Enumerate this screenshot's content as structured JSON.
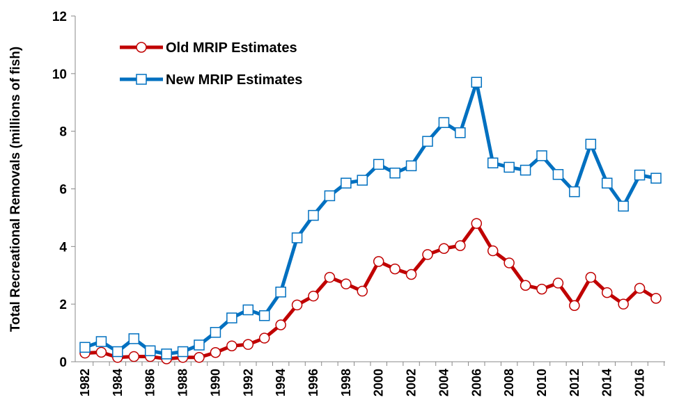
{
  "chart_data": {
    "type": "line",
    "y_label": "Total Recreational Removals (millions of fish)",
    "categories": [
      "1982",
      null,
      "1984",
      null,
      "1986",
      null,
      "1988",
      null,
      "1990",
      null,
      "1992",
      null,
      "1994",
      null,
      "1996",
      null,
      "1998",
      null,
      "2000",
      null,
      "2002",
      null,
      "2004",
      null,
      "2006",
      null,
      "2008",
      null,
      "2010",
      null,
      "2012",
      null,
      "2014",
      null,
      "2016",
      null
    ],
    "series": [
      {
        "name": "Old MRIP Estimates",
        "color": "#c00000",
        "marker": "circle",
        "values": [
          0.3,
          0.33,
          0.15,
          0.18,
          0.18,
          0.1,
          0.15,
          0.15,
          0.32,
          0.55,
          0.6,
          0.82,
          1.28,
          1.97,
          2.28,
          2.93,
          2.7,
          2.45,
          3.48,
          3.22,
          3.03,
          3.72,
          3.93,
          4.03,
          4.8,
          3.85,
          3.43,
          2.65,
          2.52,
          2.73,
          1.95,
          2.93,
          2.4,
          2.0,
          2.55,
          2.2
        ]
      },
      {
        "name": "New MRIP Estimates",
        "color": "#0070c0",
        "marker": "square",
        "values": [
          0.5,
          0.7,
          0.35,
          0.8,
          0.38,
          0.27,
          0.35,
          0.58,
          1.02,
          1.52,
          1.8,
          1.6,
          2.42,
          4.3,
          5.08,
          5.76,
          6.2,
          6.3,
          6.85,
          6.55,
          6.8,
          7.65,
          8.3,
          7.95,
          9.7,
          6.9,
          6.75,
          6.65,
          7.15,
          6.5,
          5.9,
          7.55,
          6.2,
          5.4,
          6.48,
          6.37
        ]
      }
    ],
    "ylim": [
      0,
      12
    ],
    "yticks": [
      0,
      2,
      4,
      6,
      8,
      10,
      12
    ],
    "grid": false,
    "legend": "top-left"
  }
}
